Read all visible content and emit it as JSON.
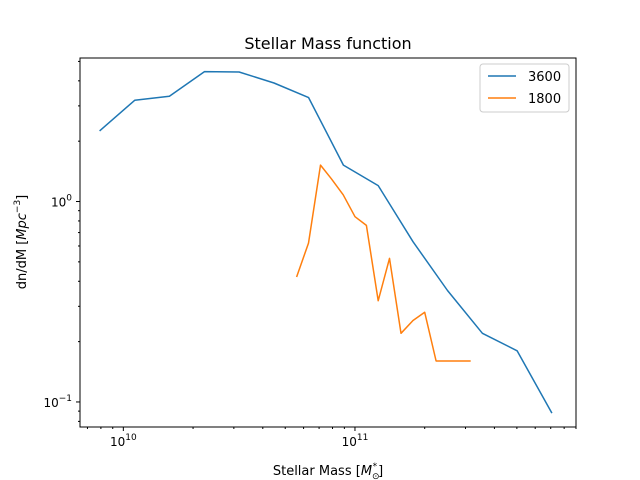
{
  "chart_data": {
    "type": "line",
    "title": "Stellar Mass function",
    "xlabel": "Stellar Mass",
    "xlabel_unit": "M",
    "xlabel_unit_sub": "⊙",
    "xlabel_unit_sup": "*",
    "ylabel": "dn/dM",
    "ylabel_unit": "Mpc",
    "ylabel_unit_sup": "−3",
    "xscale": "log",
    "yscale": "log",
    "xlim": [
      6500000000.0,
      900000000000.0
    ],
    "ylim": [
      0.075,
      5.2
    ],
    "x_ticks": [
      {
        "value": 10000000000.0,
        "base": "10",
        "exp": "10"
      },
      {
        "value": 100000000000.0,
        "base": "10",
        "exp": "11"
      }
    ],
    "y_ticks": [
      {
        "value": 0.1,
        "base": "10",
        "exp": "−1"
      },
      {
        "value": 1,
        "base": "10",
        "exp": "0"
      }
    ],
    "grid": false,
    "legend_position": "top-right",
    "series": [
      {
        "name": "3600",
        "color": "#1f77b4",
        "x": [
          7900000000.0,
          11200000000.0,
          15800000000.0,
          22400000000.0,
          31600000000.0,
          44700000000.0,
          63100000000.0,
          89100000000.0,
          126000000000.0,
          178000000000.0,
          251000000000.0,
          355000000000.0,
          501000000000.0,
          708000000000.0
        ],
        "y": [
          2.25,
          3.2,
          3.35,
          4.45,
          4.43,
          3.9,
          3.3,
          1.52,
          1.2,
          0.63,
          0.36,
          0.22,
          0.18,
          0.088
        ]
      },
      {
        "name": "1800",
        "color": "#ff7f0e",
        "x": [
          56000000000.0,
          63000000000.0,
          71000000000.0,
          79000000000.0,
          89000000000.0,
          100000000000.0,
          112000000000.0,
          126000000000.0,
          141000000000.0,
          158000000000.0,
          178000000000.0,
          200000000000.0,
          224000000000.0,
          251000000000.0,
          282000000000.0,
          316000000000.0
        ],
        "y": [
          0.42,
          0.62,
          1.52,
          1.3,
          1.08,
          0.84,
          0.76,
          0.32,
          0.52,
          0.22,
          0.255,
          0.28,
          0.16,
          0.16,
          0.16,
          0.16
        ]
      }
    ]
  }
}
